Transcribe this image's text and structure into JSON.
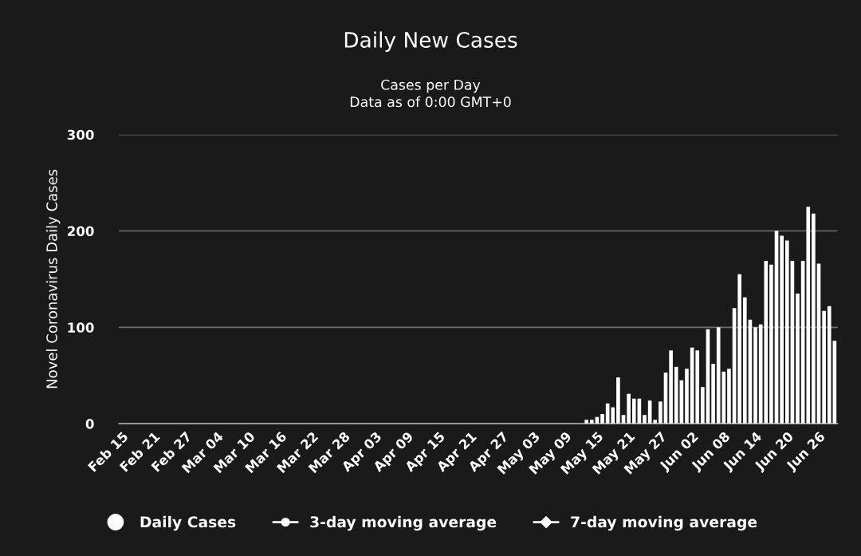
{
  "chart_data": {
    "type": "bar",
    "title": "Daily New Cases",
    "subtitle": "Cases per Day\nData as of 0:00 GMT+0",
    "ylabel": "Novel Coronavirus Daily Cases",
    "categories": [
      "Feb 15",
      null,
      null,
      null,
      null,
      null,
      "Feb 21",
      null,
      null,
      null,
      null,
      null,
      "Feb 27",
      null,
      null,
      null,
      null,
      null,
      "Mar 04",
      null,
      null,
      null,
      null,
      null,
      "Mar 10",
      null,
      null,
      null,
      null,
      null,
      "Mar 16",
      null,
      null,
      null,
      null,
      null,
      "Mar 22",
      null,
      null,
      null,
      null,
      null,
      "Mar 28",
      null,
      null,
      null,
      null,
      null,
      "Apr 03",
      null,
      null,
      null,
      null,
      null,
      "Apr 09",
      null,
      null,
      null,
      null,
      null,
      "Apr 15",
      null,
      null,
      null,
      null,
      null,
      "Apr 21",
      null,
      null,
      null,
      null,
      null,
      "Apr 27",
      null,
      null,
      null,
      null,
      null,
      "May 03",
      null,
      null,
      null,
      null,
      null,
      "May 09",
      null,
      null,
      null,
      null,
      null,
      "May 15",
      null,
      null,
      null,
      null,
      null,
      "May 21",
      null,
      null,
      null,
      null,
      null,
      "May 27",
      null,
      null,
      null,
      null,
      null,
      "Jun 02",
      null,
      null,
      null,
      null,
      null,
      "Jun 08",
      null,
      null,
      null,
      null,
      null,
      "Jun 14",
      null,
      null,
      null,
      null,
      null,
      "Jun 20",
      null,
      null,
      null,
      null,
      null,
      "Jun 26",
      null,
      null,
      null
    ],
    "series": [
      {
        "name": "Daily Cases",
        "color": "#ffffff",
        "marker": "circle",
        "values": [
          0,
          0,
          0,
          0,
          0,
          0,
          0,
          0,
          0,
          0,
          0,
          0,
          0,
          0,
          0,
          0,
          0,
          0,
          0,
          0,
          0,
          0,
          0,
          0,
          0,
          0,
          0,
          0,
          0,
          0,
          0,
          0,
          0,
          0,
          0,
          0,
          0,
          0,
          0,
          0,
          0,
          0,
          0,
          0,
          0,
          0,
          0,
          0,
          0,
          0,
          0,
          0,
          0,
          0,
          0,
          0,
          0,
          0,
          0,
          0,
          0,
          0,
          0,
          0,
          0,
          0,
          0,
          0,
          0,
          0,
          0,
          0,
          0,
          0,
          0,
          0,
          0,
          0,
          0,
          0,
          0,
          0,
          0,
          0,
          0,
          0,
          0,
          0,
          4,
          4,
          7,
          10,
          21,
          17,
          48,
          9,
          31,
          26,
          26,
          9,
          24,
          4,
          23,
          53,
          76,
          59,
          45,
          57,
          79,
          76,
          38,
          98,
          62,
          100,
          54,
          57,
          120,
          155,
          131,
          108,
          100,
          103,
          169,
          165,
          200,
          195,
          190,
          169,
          135,
          169,
          225,
          218,
          166,
          117,
          122,
          86
        ]
      },
      {
        "name": "3-day moving average",
        "type": "line",
        "color": "#ffffff",
        "marker": "circle",
        "values": [
          null,
          null,
          null,
          null,
          null,
          null,
          null,
          null,
          null,
          null,
          null,
          null,
          null,
          null,
          null,
          null,
          null,
          null,
          null,
          null,
          null,
          null,
          null,
          null,
          null,
          null,
          null,
          null,
          null,
          null,
          null,
          null,
          null,
          null,
          null,
          null,
          null,
          null,
          null,
          null,
          null,
          null,
          null,
          null,
          null,
          null,
          null,
          null,
          null,
          null,
          null,
          null,
          null,
          null,
          null,
          null,
          null,
          null,
          null,
          null,
          null,
          null,
          null,
          null,
          null,
          null,
          null,
          null,
          null,
          null,
          null,
          null,
          null,
          null,
          null,
          null,
          null,
          null,
          null,
          null,
          null,
          null,
          null,
          null,
          null,
          null,
          null,
          null,
          null,
          null,
          null,
          null,
          null,
          null,
          null,
          null,
          null,
          null,
          null,
          null,
          null,
          null,
          null,
          null,
          null,
          null,
          null,
          null,
          null,
          null,
          null,
          null,
          null,
          null,
          null,
          null,
          null,
          null,
          null,
          null,
          null,
          null,
          null,
          null,
          null,
          null,
          null,
          null,
          null,
          null,
          null,
          null,
          null,
          null,
          null,
          null
        ]
      },
      {
        "name": "7-day moving average",
        "type": "line",
        "color": "#ffffff",
        "marker": "diamond",
        "values": [
          null,
          null,
          null,
          null,
          null,
          null,
          null,
          null,
          null,
          null,
          null,
          null,
          null,
          null,
          null,
          null,
          null,
          null,
          null,
          null,
          null,
          null,
          null,
          null,
          null,
          null,
          null,
          null,
          null,
          null,
          null,
          null,
          null,
          null,
          null,
          null,
          null,
          null,
          null,
          null,
          null,
          null,
          null,
          null,
          null,
          null,
          null,
          null,
          null,
          null,
          null,
          null,
          null,
          null,
          null,
          null,
          null,
          null,
          null,
          null,
          null,
          null,
          null,
          null,
          null,
          null,
          null,
          null,
          null,
          null,
          null,
          null,
          null,
          null,
          null,
          null,
          null,
          null,
          null,
          null,
          null,
          null,
          null,
          null,
          null,
          null,
          null,
          null,
          null,
          null,
          null,
          null,
          null,
          null,
          null,
          null,
          null,
          null,
          null,
          null,
          null,
          null,
          null,
          null,
          null,
          null,
          null,
          null,
          null,
          null,
          null,
          null,
          null,
          null,
          null,
          null,
          null,
          null,
          null,
          null,
          null,
          null,
          null,
          null,
          null,
          null,
          null,
          null,
          null,
          null,
          null,
          null,
          null,
          null,
          null,
          null
        ]
      }
    ],
    "ylim": [
      0,
      300
    ],
    "yticks": [
      0,
      100,
      200,
      300
    ],
    "grid": "y",
    "legend": "bottom"
  }
}
